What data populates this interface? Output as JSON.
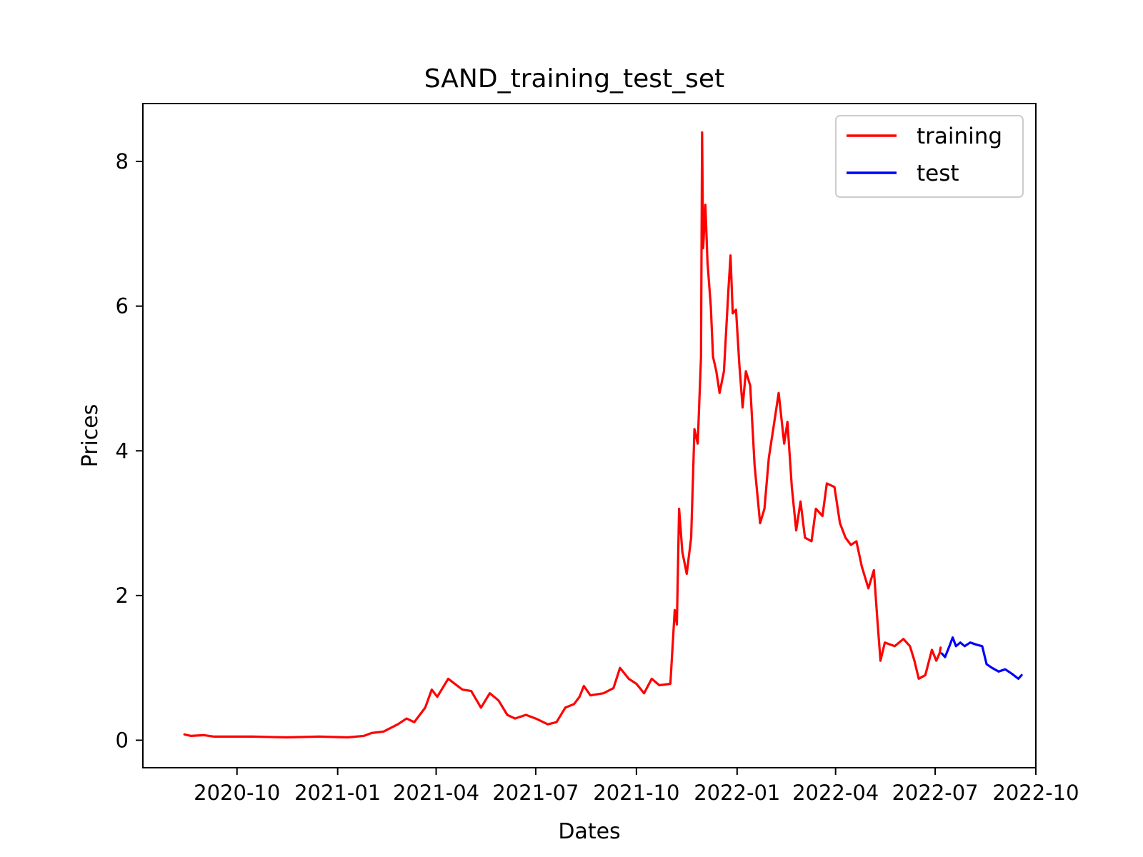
{
  "chart_data": {
    "type": "line",
    "title": "SAND_training_test_set",
    "xlabel": "Dates",
    "ylabel": "Prices",
    "x_ticks": [
      "2020-10",
      "2021-01",
      "2021-04",
      "2021-07",
      "2021-10",
      "2022-01",
      "2022-04",
      "2022-07",
      "2022-10"
    ],
    "y_ticks": [
      0,
      2,
      4,
      6,
      8
    ],
    "xlim": [
      "2020-07-07",
      "2022-10-01"
    ],
    "ylim": [
      -0.38,
      8.8
    ],
    "grid": false,
    "legend_position": "top-right",
    "series": [
      {
        "name": "training",
        "color": "#ff0000",
        "points": [
          [
            "2020-08-14",
            0.08
          ],
          [
            "2020-08-20",
            0.06
          ],
          [
            "2020-09-01",
            0.07
          ],
          [
            "2020-09-10",
            0.05
          ],
          [
            "2020-09-25",
            0.05
          ],
          [
            "2020-10-15",
            0.05
          ],
          [
            "2020-11-15",
            0.04
          ],
          [
            "2020-12-15",
            0.05
          ],
          [
            "2021-01-10",
            0.04
          ],
          [
            "2021-01-25",
            0.06
          ],
          [
            "2021-02-01",
            0.1
          ],
          [
            "2021-02-12",
            0.12
          ],
          [
            "2021-02-25",
            0.22
          ],
          [
            "2021-03-05",
            0.3
          ],
          [
            "2021-03-12",
            0.25
          ],
          [
            "2021-03-22",
            0.45
          ],
          [
            "2021-03-28",
            0.7
          ],
          [
            "2021-04-02",
            0.6
          ],
          [
            "2021-04-12",
            0.85
          ],
          [
            "2021-04-18",
            0.78
          ],
          [
            "2021-04-25",
            0.7
          ],
          [
            "2021-05-03",
            0.68
          ],
          [
            "2021-05-12",
            0.45
          ],
          [
            "2021-05-20",
            0.65
          ],
          [
            "2021-05-28",
            0.55
          ],
          [
            "2021-06-05",
            0.35
          ],
          [
            "2021-06-12",
            0.3
          ],
          [
            "2021-06-22",
            0.35
          ],
          [
            "2021-07-01",
            0.3
          ],
          [
            "2021-07-12",
            0.22
          ],
          [
            "2021-07-20",
            0.25
          ],
          [
            "2021-07-28",
            0.45
          ],
          [
            "2021-08-05",
            0.5
          ],
          [
            "2021-08-10",
            0.6
          ],
          [
            "2021-08-14",
            0.75
          ],
          [
            "2021-08-20",
            0.62
          ],
          [
            "2021-09-01",
            0.65
          ],
          [
            "2021-09-10",
            0.72
          ],
          [
            "2021-09-16",
            1.0
          ],
          [
            "2021-09-24",
            0.85
          ],
          [
            "2021-10-01",
            0.78
          ],
          [
            "2021-10-08",
            0.65
          ],
          [
            "2021-10-15",
            0.85
          ],
          [
            "2021-10-22",
            0.76
          ],
          [
            "2021-11-01",
            0.78
          ],
          [
            "2021-11-05",
            1.8
          ],
          [
            "2021-11-07",
            1.6
          ],
          [
            "2021-11-09",
            3.2
          ],
          [
            "2021-11-12",
            2.6
          ],
          [
            "2021-11-16",
            2.3
          ],
          [
            "2021-11-20",
            2.8
          ],
          [
            "2021-11-23",
            4.3
          ],
          [
            "2021-11-26",
            4.1
          ],
          [
            "2021-11-29",
            5.3
          ],
          [
            "2021-11-30",
            8.4
          ],
          [
            "2021-12-01",
            6.8
          ],
          [
            "2021-12-03",
            7.4
          ],
          [
            "2021-12-05",
            6.6
          ],
          [
            "2021-12-08",
            6.0
          ],
          [
            "2021-12-10",
            5.3
          ],
          [
            "2021-12-13",
            5.1
          ],
          [
            "2021-12-16",
            4.8
          ],
          [
            "2021-12-20",
            5.1
          ],
          [
            "2021-12-24",
            6.2
          ],
          [
            "2021-12-26",
            6.7
          ],
          [
            "2021-12-28",
            5.9
          ],
          [
            "2021-12-31",
            5.95
          ],
          [
            "2022-01-03",
            5.2
          ],
          [
            "2022-01-06",
            4.6
          ],
          [
            "2022-01-09",
            5.1
          ],
          [
            "2022-01-13",
            4.9
          ],
          [
            "2022-01-17",
            3.8
          ],
          [
            "2022-01-22",
            3.0
          ],
          [
            "2022-01-26",
            3.2
          ],
          [
            "2022-01-30",
            3.9
          ],
          [
            "2022-02-04",
            4.4
          ],
          [
            "2022-02-08",
            4.8
          ],
          [
            "2022-02-13",
            4.1
          ],
          [
            "2022-02-16",
            4.4
          ],
          [
            "2022-02-20",
            3.5
          ],
          [
            "2022-02-24",
            2.9
          ],
          [
            "2022-02-28",
            3.3
          ],
          [
            "2022-03-04",
            2.8
          ],
          [
            "2022-03-10",
            2.75
          ],
          [
            "2022-03-14",
            3.2
          ],
          [
            "2022-03-20",
            3.1
          ],
          [
            "2022-03-24",
            3.55
          ],
          [
            "2022-03-31",
            3.5
          ],
          [
            "2022-04-05",
            3.0
          ],
          [
            "2022-04-10",
            2.8
          ],
          [
            "2022-04-15",
            2.7
          ],
          [
            "2022-04-20",
            2.75
          ],
          [
            "2022-04-25",
            2.4
          ],
          [
            "2022-05-01",
            2.1
          ],
          [
            "2022-05-06",
            2.35
          ],
          [
            "2022-05-09",
            1.7
          ],
          [
            "2022-05-12",
            1.1
          ],
          [
            "2022-05-16",
            1.35
          ],
          [
            "2022-05-25",
            1.3
          ],
          [
            "2022-06-02",
            1.4
          ],
          [
            "2022-06-08",
            1.3
          ],
          [
            "2022-06-12",
            1.1
          ],
          [
            "2022-06-16",
            0.85
          ],
          [
            "2022-06-22",
            0.9
          ],
          [
            "2022-06-28",
            1.25
          ],
          [
            "2022-07-02",
            1.1
          ],
          [
            "2022-07-05",
            1.2
          ],
          [
            "2022-07-06",
            1.28
          ]
        ]
      },
      {
        "name": "test",
        "color": "#0000ff",
        "points": [
          [
            "2022-07-07",
            1.2
          ],
          [
            "2022-07-10",
            1.15
          ],
          [
            "2022-07-14",
            1.3
          ],
          [
            "2022-07-17",
            1.42
          ],
          [
            "2022-07-20",
            1.3
          ],
          [
            "2022-07-24",
            1.35
          ],
          [
            "2022-07-28",
            1.3
          ],
          [
            "2022-08-02",
            1.35
          ],
          [
            "2022-08-08",
            1.32
          ],
          [
            "2022-08-13",
            1.3
          ],
          [
            "2022-08-17",
            1.05
          ],
          [
            "2022-08-22",
            1.0
          ],
          [
            "2022-08-28",
            0.95
          ],
          [
            "2022-09-03",
            0.98
          ],
          [
            "2022-09-09",
            0.92
          ],
          [
            "2022-09-15",
            0.85
          ],
          [
            "2022-09-18",
            0.9
          ]
        ]
      }
    ]
  }
}
